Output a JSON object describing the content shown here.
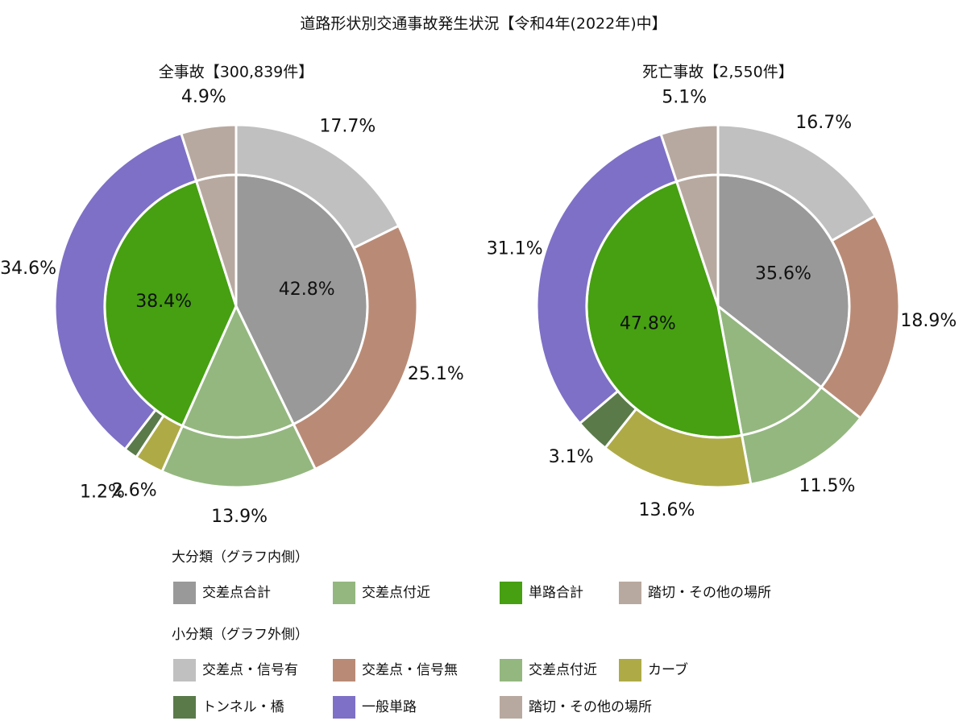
{
  "title": "道路形状別交通事故発生状況【令和4年(2022年)中】",
  "legend_groups": [
    {
      "name": "大分類（グラフ内側）",
      "categories": [
        "交差点合計",
        "交差点付近",
        "単路合計",
        "踏切・その他の場所"
      ],
      "colors": [
        "#999999",
        "#94b77f",
        "#46a012",
        "#b8a9a0"
      ]
    },
    {
      "name": "小分類（グラフ外側）",
      "categories": [
        "交差点・信号有",
        "交差点・信号無",
        "交差点付近",
        "カーブ",
        "トンネル・橋",
        "一般単路",
        "踏切・その他の場所"
      ],
      "colors": [
        "#c0c0c0",
        "#b98b76",
        "#94b77f",
        "#aeab47",
        "#5a7a4a",
        "#7e70c6",
        "#b8a9a0"
      ]
    }
  ],
  "chart_data": [
    {
      "type": "pie",
      "title": "全事故【300,839件】",
      "series": [
        {
          "values": [
            42.8,
            13.9,
            38.4,
            4.9
          ],
          "value_labels": [
            "42.8%",
            null,
            "38.4%",
            null
          ]
        },
        {
          "values": [
            17.7,
            25.1,
            13.9,
            2.6,
            1.2,
            34.6,
            4.9
          ],
          "value_labels": [
            "17.7%",
            "25.1%",
            "13.9%",
            "2.6%",
            "1.2%",
            "34.6%",
            "4.9%"
          ]
        }
      ]
    },
    {
      "type": "pie",
      "title": "死亡事故【2,550件】",
      "series": [
        {
          "values": [
            35.6,
            11.5,
            47.8,
            5.1
          ],
          "value_labels": [
            "35.6%",
            null,
            "47.8%",
            null
          ]
        },
        {
          "values": [
            16.7,
            18.9,
            11.5,
            13.6,
            3.1,
            31.1,
            5.1
          ],
          "value_labels": [
            "16.7%",
            "18.9%",
            "11.5%",
            "13.6%",
            "3.1%",
            "31.1%",
            "5.1%"
          ]
        }
      ]
    }
  ]
}
